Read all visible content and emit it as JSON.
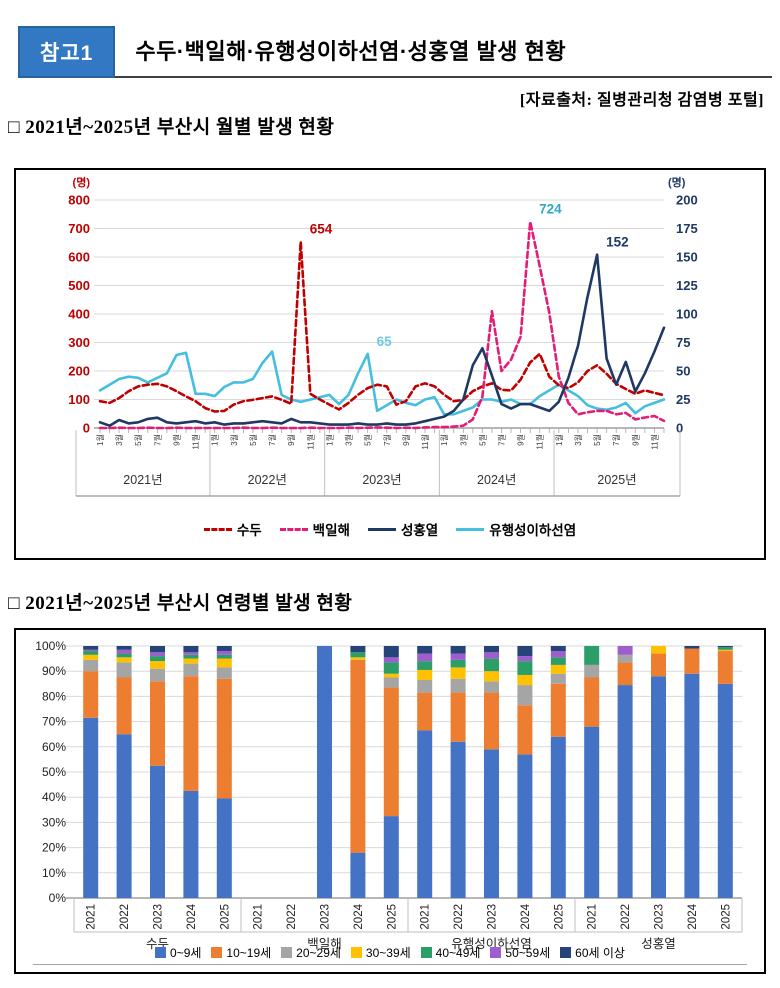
{
  "header": {
    "badge": "참고1",
    "title": "수두·백일해·유행성이하선염·성홍열 발생 현황",
    "source": "[자료출처: 질병관리청 감염병 포털]"
  },
  "sections": [
    {
      "heading": "□ 2021년~2025년 부산시 월별 발생 현황"
    },
    {
      "heading": "□ 2021년~2025년 부산시 연령별 발생 현황"
    }
  ],
  "chart_data": [
    {
      "type": "line",
      "title": "2021년~2025년 부산시 월별 발생 현황",
      "x_years": [
        "2021년",
        "2022년",
        "2023년",
        "2024년",
        "2025년"
      ],
      "x_month_tick_labels": [
        "1월",
        "3월",
        "5월",
        "7월",
        "9월",
        "11월"
      ],
      "axes": {
        "left": {
          "unit": "(명)",
          "min": 0,
          "max": 800,
          "step": 100,
          "color": "#C00000"
        },
        "right": {
          "unit": "(명)",
          "min": 0,
          "max": 200,
          "step": 25,
          "color": "#1F3864"
        }
      },
      "grid": true,
      "legend_position": "bottom",
      "series": [
        {
          "name": "수두",
          "axis": "left",
          "style": "dashed",
          "color": "#C00000",
          "values": [
            94,
            88,
            105,
            129,
            146,
            152,
            155,
            146,
            129,
            111,
            94,
            70,
            58,
            60,
            82,
            94,
            99,
            105,
            111,
            99,
            85,
            654,
            120,
            100,
            82,
            65,
            88,
            117,
            140,
            152,
            146,
            82,
            94,
            146,
            157,
            146,
            117,
            94,
            99,
            129,
            146,
            157,
            134,
            132,
            170,
            230,
            260,
            180,
            150,
            140,
            160,
            200,
            220,
            190,
            155,
            137,
            120,
            132,
            123,
            115
          ]
        },
        {
          "name": "백일해",
          "axis": "left",
          "style": "dashed",
          "color": "#E31D75",
          "values": [
            0,
            0,
            1,
            0,
            0,
            1,
            0,
            0,
            1,
            0,
            0,
            0,
            0,
            0,
            0,
            1,
            0,
            0,
            1,
            0,
            0,
            0,
            1,
            0,
            0,
            0,
            1,
            0,
            1,
            2,
            1,
            0,
            1,
            0,
            2,
            3,
            3,
            5,
            8,
            30,
            110,
            410,
            200,
            240,
            320,
            724,
            568,
            404,
            180,
            88,
            48,
            55,
            60,
            60,
            48,
            53,
            30,
            37,
            42,
            25
          ]
        },
        {
          "name": "성홍열",
          "axis": "right",
          "style": "solid",
          "color": "#1F3864",
          "values": [
            5,
            2,
            7,
            4,
            5,
            8,
            9,
            5,
            4,
            5,
            6,
            4,
            5,
            3,
            4,
            4,
            5,
            6,
            5,
            4,
            8,
            5,
            5,
            4,
            3,
            3,
            3,
            4,
            3,
            3,
            4,
            3,
            3,
            4,
            6,
            8,
            10,
            15,
            25,
            55,
            70,
            46,
            21,
            17,
            21,
            21,
            18,
            15,
            23,
            44,
            72,
            115,
            152,
            61,
            38,
            58,
            32,
            48,
            67,
            88
          ]
        },
        {
          "name": "유행성이하선염",
          "axis": "right",
          "style": "solid",
          "color": "#45BEDF",
          "values": [
            33,
            38,
            43,
            45,
            44,
            40,
            44,
            48,
            64,
            66,
            30,
            30,
            28,
            36,
            40,
            40,
            43,
            57,
            67,
            29,
            25,
            23,
            25,
            27,
            29,
            21,
            29,
            48,
            65,
            15,
            20,
            25,
            22,
            20,
            25,
            27,
            12,
            12,
            15,
            18,
            25,
            25,
            23,
            25,
            21,
            21,
            28,
            33,
            38,
            33,
            28,
            20,
            17,
            16,
            18,
            22,
            13,
            19,
            22,
            25
          ]
        }
      ],
      "annotations": [
        {
          "text": "654",
          "series": "수두",
          "month_index": 21,
          "color": "#C00000"
        },
        {
          "text": "724",
          "series": "백일해",
          "month_index": 45,
          "color": "#2FA8C8"
        },
        {
          "text": "65",
          "series": "유행성이하선염",
          "month_index": 28,
          "color": "#6FC9E2"
        },
        {
          "text": "152",
          "series": "성홍열",
          "month_index": 52,
          "color": "#1F3864"
        }
      ]
    },
    {
      "type": "stacked_bar_percent",
      "title": "2021년~2025년 부산시 연령별 발생 현황",
      "ylim": [
        0,
        100
      ],
      "ytick_step": 10,
      "grid": true,
      "legend_position": "bottom",
      "groups": [
        "수두",
        "백일해",
        "유행성이하선염",
        "성홍열"
      ],
      "years": [
        "2021",
        "2022",
        "2023",
        "2024",
        "2025"
      ],
      "age_bands": [
        {
          "label": "0~9세",
          "color": "#4472C4"
        },
        {
          "label": "10~19세",
          "color": "#ED7D31"
        },
        {
          "label": "20~29세",
          "color": "#A5A5A5"
        },
        {
          "label": "30~39세",
          "color": "#FFC000"
        },
        {
          "label": "40~49세",
          "color": "#2E9E68"
        },
        {
          "label": "50~59세",
          "color": "#9E5ECE"
        },
        {
          "label": "60세 이상",
          "color": "#264478"
        }
      ],
      "values": [
        [
          [
            71.5,
            18.5,
            4.5,
            2,
            1.5,
            0.5,
            1.5
          ],
          [
            65,
            22.5,
            6,
            2,
            1.5,
            1.5,
            1.5
          ],
          [
            52.5,
            33.5,
            5,
            3,
            2,
            1.5,
            2.5
          ],
          [
            42.5,
            45.5,
            5,
            2,
            1.5,
            1,
            2.5
          ],
          [
            39.5,
            47.5,
            4.5,
            3.5,
            1.5,
            1.5,
            2
          ]
        ],
        [
          null,
          null,
          [
            100,
            0,
            0,
            0,
            0,
            0,
            0
          ],
          [
            18,
            76.5,
            0,
            1,
            2,
            0,
            2.5
          ],
          [
            32.5,
            51,
            4,
            1.5,
            4.5,
            2,
            4.5
          ]
        ],
        [
          [
            66.5,
            15,
            5,
            4,
            3.5,
            3,
            3
          ],
          [
            62,
            19.5,
            5.5,
            4.5,
            3,
            2.5,
            3
          ],
          [
            59,
            22.5,
            4.5,
            4,
            5,
            2.5,
            2.5
          ],
          [
            57,
            19.5,
            8,
            4,
            5.5,
            2,
            4
          ],
          [
            64,
            21,
            4,
            3.5,
            3,
            2.5,
            2
          ]
        ],
        [
          [
            68,
            19.5,
            5,
            0,
            7.5,
            0,
            0
          ],
          [
            84.5,
            9,
            3,
            0,
            0,
            3.5,
            0
          ],
          [
            88,
            9,
            0,
            3,
            0,
            0,
            0
          ],
          [
            89,
            10,
            0,
            0,
            0,
            0,
            1
          ],
          [
            85,
            13,
            0,
            0.5,
            1,
            0,
            0.5
          ]
        ]
      ]
    }
  ]
}
